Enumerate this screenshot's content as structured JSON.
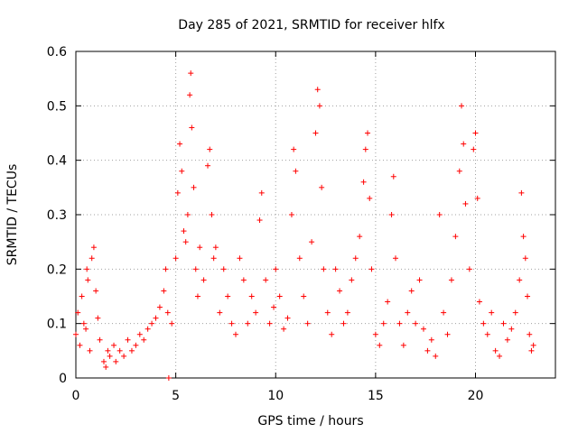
{
  "chart_data": {
    "type": "scatter",
    "title": "Day 285 of 2021, SRMTID for receiver hlfx",
    "xlabel": "GPS time / hours",
    "ylabel": "SRMTID / TECUs",
    "xlim": [
      0,
      24
    ],
    "ylim": [
      0,
      0.6
    ],
    "xticks": [
      0,
      5,
      10,
      15,
      20
    ],
    "yticks": [
      0,
      0.1,
      0.2,
      0.3,
      0.4,
      0.5,
      0.6
    ],
    "xtick_labels": [
      "0",
      "5",
      "10",
      "15",
      "20"
    ],
    "ytick_labels": [
      "0",
      "0.1",
      "0.2",
      "0.3",
      "0.4",
      "0.5",
      "0.6"
    ],
    "grid": true,
    "marker": "+",
    "marker_color": "#ff0000",
    "series": [
      {
        "name": "SRMTID",
        "points": [
          [
            0.0,
            0.08
          ],
          [
            0.1,
            0.12
          ],
          [
            0.2,
            0.06
          ],
          [
            0.3,
            0.15
          ],
          [
            0.4,
            0.1
          ],
          [
            0.5,
            0.09
          ],
          [
            0.55,
            0.2
          ],
          [
            0.6,
            0.18
          ],
          [
            0.7,
            0.05
          ],
          [
            0.8,
            0.22
          ],
          [
            0.9,
            0.24
          ],
          [
            1.0,
            0.16
          ],
          [
            1.1,
            0.11
          ],
          [
            1.2,
            0.07
          ],
          [
            1.4,
            0.03
          ],
          [
            1.5,
            0.02
          ],
          [
            1.6,
            0.05
          ],
          [
            1.7,
            0.04
          ],
          [
            1.9,
            0.06
          ],
          [
            2.0,
            0.03
          ],
          [
            2.2,
            0.05
          ],
          [
            2.4,
            0.04
          ],
          [
            2.6,
            0.07
          ],
          [
            2.8,
            0.05
          ],
          [
            3.0,
            0.06
          ],
          [
            3.2,
            0.08
          ],
          [
            3.4,
            0.07
          ],
          [
            3.6,
            0.09
          ],
          [
            3.8,
            0.1
          ],
          [
            4.0,
            0.11
          ],
          [
            4.2,
            0.13
          ],
          [
            4.4,
            0.16
          ],
          [
            4.5,
            0.2
          ],
          [
            4.6,
            0.12
          ],
          [
            4.65,
            0.0
          ],
          [
            4.8,
            0.1
          ],
          [
            5.0,
            0.22
          ],
          [
            5.1,
            0.34
          ],
          [
            5.2,
            0.43
          ],
          [
            5.3,
            0.38
          ],
          [
            5.4,
            0.27
          ],
          [
            5.5,
            0.25
          ],
          [
            5.6,
            0.3
          ],
          [
            5.7,
            0.52
          ],
          [
            5.75,
            0.56
          ],
          [
            5.8,
            0.46
          ],
          [
            5.9,
            0.35
          ],
          [
            6.0,
            0.2
          ],
          [
            6.1,
            0.15
          ],
          [
            6.2,
            0.24
          ],
          [
            6.4,
            0.18
          ],
          [
            6.6,
            0.39
          ],
          [
            6.7,
            0.42
          ],
          [
            6.8,
            0.3
          ],
          [
            6.9,
            0.22
          ],
          [
            7.0,
            0.24
          ],
          [
            7.2,
            0.12
          ],
          [
            7.4,
            0.2
          ],
          [
            7.6,
            0.15
          ],
          [
            7.8,
            0.1
          ],
          [
            8.0,
            0.08
          ],
          [
            8.2,
            0.22
          ],
          [
            8.4,
            0.18
          ],
          [
            8.6,
            0.1
          ],
          [
            8.8,
            0.15
          ],
          [
            9.0,
            0.12
          ],
          [
            9.2,
            0.29
          ],
          [
            9.3,
            0.34
          ],
          [
            9.5,
            0.18
          ],
          [
            9.7,
            0.1
          ],
          [
            9.9,
            0.13
          ],
          [
            10.0,
            0.2
          ],
          [
            10.2,
            0.15
          ],
          [
            10.4,
            0.09
          ],
          [
            10.6,
            0.11
          ],
          [
            10.8,
            0.3
          ],
          [
            10.9,
            0.42
          ],
          [
            11.0,
            0.38
          ],
          [
            11.2,
            0.22
          ],
          [
            11.4,
            0.15
          ],
          [
            11.6,
            0.1
          ],
          [
            11.8,
            0.25
          ],
          [
            12.0,
            0.45
          ],
          [
            12.1,
            0.53
          ],
          [
            12.2,
            0.5
          ],
          [
            12.3,
            0.35
          ],
          [
            12.4,
            0.2
          ],
          [
            12.6,
            0.12
          ],
          [
            12.8,
            0.08
          ],
          [
            13.0,
            0.2
          ],
          [
            13.2,
            0.16
          ],
          [
            13.4,
            0.1
          ],
          [
            13.6,
            0.12
          ],
          [
            13.8,
            0.18
          ],
          [
            14.0,
            0.22
          ],
          [
            14.2,
            0.26
          ],
          [
            14.4,
            0.36
          ],
          [
            14.5,
            0.42
          ],
          [
            14.6,
            0.45
          ],
          [
            14.7,
            0.33
          ],
          [
            14.8,
            0.2
          ],
          [
            15.0,
            0.08
          ],
          [
            15.2,
            0.06
          ],
          [
            15.4,
            0.1
          ],
          [
            15.6,
            0.14
          ],
          [
            15.8,
            0.3
          ],
          [
            15.9,
            0.37
          ],
          [
            16.0,
            0.22
          ],
          [
            16.2,
            0.1
          ],
          [
            16.4,
            0.06
          ],
          [
            16.6,
            0.12
          ],
          [
            16.8,
            0.16
          ],
          [
            17.0,
            0.1
          ],
          [
            17.2,
            0.18
          ],
          [
            17.4,
            0.09
          ],
          [
            17.6,
            0.05
          ],
          [
            17.8,
            0.07
          ],
          [
            18.0,
            0.04
          ],
          [
            18.2,
            0.3
          ],
          [
            18.4,
            0.12
          ],
          [
            18.6,
            0.08
          ],
          [
            18.8,
            0.18
          ],
          [
            19.0,
            0.26
          ],
          [
            19.2,
            0.38
          ],
          [
            19.3,
            0.5
          ],
          [
            19.4,
            0.43
          ],
          [
            19.5,
            0.32
          ],
          [
            19.7,
            0.2
          ],
          [
            19.9,
            0.42
          ],
          [
            20.0,
            0.45
          ],
          [
            20.1,
            0.33
          ],
          [
            20.2,
            0.14
          ],
          [
            20.4,
            0.1
          ],
          [
            20.6,
            0.08
          ],
          [
            20.8,
            0.12
          ],
          [
            21.0,
            0.05
          ],
          [
            21.2,
            0.04
          ],
          [
            21.4,
            0.1
          ],
          [
            21.6,
            0.07
          ],
          [
            21.8,
            0.09
          ],
          [
            22.0,
            0.12
          ],
          [
            22.2,
            0.18
          ],
          [
            22.3,
            0.34
          ],
          [
            22.4,
            0.26
          ],
          [
            22.5,
            0.22
          ],
          [
            22.6,
            0.15
          ],
          [
            22.7,
            0.08
          ],
          [
            22.8,
            0.05
          ],
          [
            22.9,
            0.06
          ]
        ]
      }
    ]
  }
}
